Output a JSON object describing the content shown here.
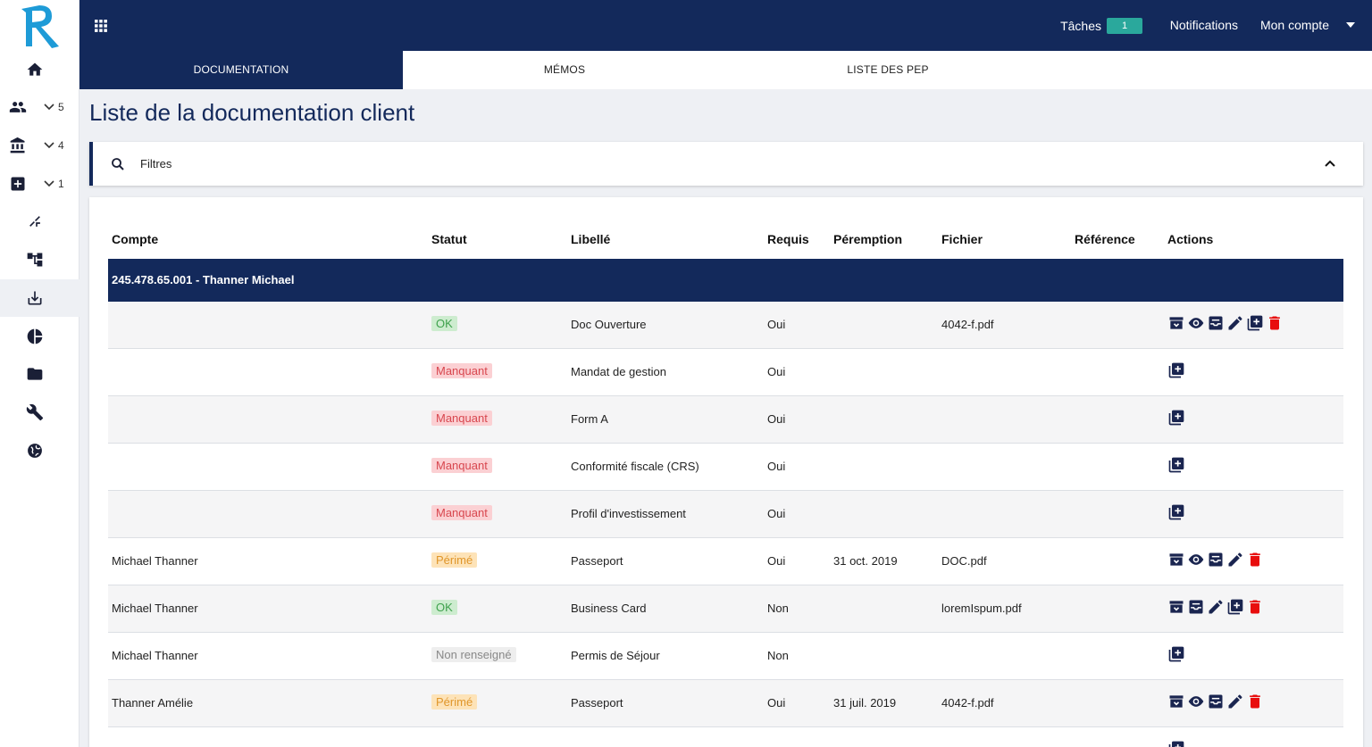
{
  "app": {
    "logo_letter": "R",
    "brand_color": "#13295b",
    "accent_color": "#2aa89c"
  },
  "sidebar": {
    "items": [
      {
        "icon": "home-icon"
      },
      {
        "icon": "people-icon",
        "count": "5"
      },
      {
        "icon": "bank-icon",
        "count": "4"
      },
      {
        "icon": "add-box-icon",
        "count": "1"
      },
      {
        "icon": "compress-icon"
      },
      {
        "icon": "hierarchy-icon"
      },
      {
        "icon": "download-icon",
        "active": true
      },
      {
        "icon": "pie-chart-icon"
      },
      {
        "icon": "folder-icon"
      },
      {
        "icon": "wrench-icon"
      },
      {
        "icon": "globe-icon"
      }
    ]
  },
  "topbar": {
    "tasks_label": "Tâches",
    "tasks_count": "1",
    "notifications_label": "Notifications",
    "account_label": "Mon compte"
  },
  "tabs": [
    {
      "label": "DOCUMENTATION",
      "active": true
    },
    {
      "label": "MÉMOS",
      "active": false
    },
    {
      "label": "LISTE DES PEP",
      "active": false
    }
  ],
  "page": {
    "title": "Liste de la documentation client"
  },
  "filter": {
    "label": "Filtres"
  },
  "table": {
    "headers": {
      "compte": "Compte",
      "statut": "Statut",
      "libelle": "Libellé",
      "requis": "Requis",
      "peremption": "Péremption",
      "fichier": "Fichier",
      "reference": "Référence",
      "actions": "Actions"
    },
    "group": {
      "label": "245.478.65.001 - Thanner Michael"
    },
    "rows": [
      {
        "compte": "",
        "statut": "OK",
        "statut_type": "ok",
        "libelle": "Doc Ouverture",
        "requis": "Oui",
        "peremption": "",
        "fichier": "4042-f.pdf",
        "reference": "",
        "actions": [
          "archive-icon",
          "eye-icon",
          "inbox-icon",
          "pencil-icon",
          "add-copy-icon",
          "trash-icon"
        ]
      },
      {
        "compte": "",
        "statut": "Manquant",
        "statut_type": "manquant",
        "libelle": "Mandat de gestion",
        "requis": "Oui",
        "peremption": "",
        "fichier": "",
        "reference": "",
        "actions": [
          "add-copy-icon"
        ]
      },
      {
        "compte": "",
        "statut": "Manquant",
        "statut_type": "manquant",
        "libelle": "Form A",
        "requis": "Oui",
        "peremption": "",
        "fichier": "",
        "reference": "",
        "actions": [
          "add-copy-icon"
        ]
      },
      {
        "compte": "",
        "statut": "Manquant",
        "statut_type": "manquant",
        "libelle": "Conformité fiscale (CRS)",
        "requis": "Oui",
        "peremption": "",
        "fichier": "",
        "reference": "",
        "actions": [
          "add-copy-icon"
        ]
      },
      {
        "compte": "",
        "statut": "Manquant",
        "statut_type": "manquant",
        "libelle": "Profil d'investissement",
        "requis": "Oui",
        "peremption": "",
        "fichier": "",
        "reference": "",
        "actions": [
          "add-copy-icon"
        ]
      },
      {
        "compte": "Michael Thanner",
        "statut": "Périmé",
        "statut_type": "perime",
        "libelle": "Passeport",
        "requis": "Oui",
        "peremption": "31 oct. 2019",
        "fichier": "DOC.pdf",
        "reference": "",
        "actions": [
          "archive-icon",
          "eye-icon",
          "inbox-icon",
          "pencil-icon",
          "trash-icon"
        ]
      },
      {
        "compte": "Michael Thanner",
        "statut": "OK",
        "statut_type": "ok",
        "libelle": "Business Card",
        "requis": "Non",
        "peremption": "",
        "fichier": "loremIspum.pdf",
        "reference": "",
        "actions": [
          "archive-icon",
          "inbox-icon",
          "pencil-icon",
          "add-copy-icon",
          "trash-icon"
        ]
      },
      {
        "compte": "Michael Thanner",
        "statut": "Non renseigné",
        "statut_type": "nonrens",
        "libelle": "Permis de Séjour",
        "requis": "Non",
        "peremption": "",
        "fichier": "",
        "reference": "",
        "actions": [
          "add-copy-icon"
        ]
      },
      {
        "compte": "Thanner Amélie",
        "statut": "Périmé",
        "statut_type": "perime",
        "libelle": "Passeport",
        "requis": "Oui",
        "peremption": "31 juil. 2019",
        "fichier": "4042-f.pdf",
        "reference": "",
        "actions": [
          "archive-icon",
          "eye-icon",
          "inbox-icon",
          "pencil-icon",
          "trash-icon"
        ]
      },
      {
        "compte": "",
        "statut": "",
        "statut_type": "nonrens",
        "libelle": "",
        "requis": "",
        "peremption": "",
        "fichier": "",
        "reference": "",
        "actions": [
          "add-copy-icon"
        ]
      }
    ]
  }
}
